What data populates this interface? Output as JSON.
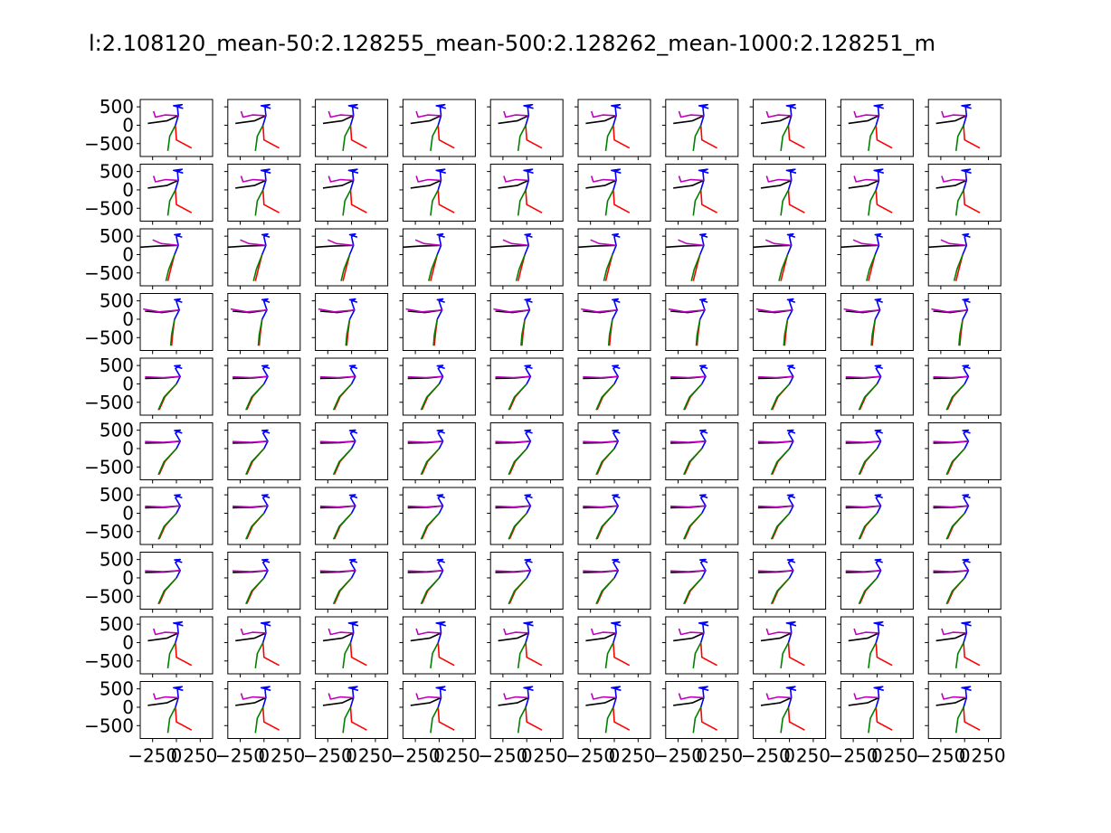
{
  "chart_data": {
    "type": "line",
    "layout": "grid-of-subplots",
    "title": "l:2.108120_mean-50:2.128255_mean-500:2.128262_mean-1000:2.128251_m",
    "grid": {
      "rows": 10,
      "cols": 10
    },
    "xlim": [
      -380,
      380
    ],
    "ylim": [
      -850,
      700
    ],
    "xticks": [
      -250,
      0,
      250
    ],
    "xtick_labels": [
      "−250",
      "0",
      "250"
    ],
    "yticks": [
      500,
      0,
      -500
    ],
    "ytick_labels": [
      "500",
      "0",
      "−500"
    ],
    "axis_grid": false,
    "legend": "none",
    "limb_colors": {
      "left_leg": "#ff0000",
      "right_leg": "#008000",
      "spine": "#0000ff",
      "arm_left": "#000000",
      "arm_right": "#bf00bf"
    },
    "poses": [
      {
        "name": "pose-a",
        "left_leg": [
          [
            -10,
            0
          ],
          [
            0,
            -400
          ],
          [
            160,
            -620
          ]
        ],
        "right_leg": [
          [
            -10,
            0
          ],
          [
            -70,
            -300
          ],
          [
            -90,
            -700
          ]
        ],
        "spine": [
          [
            -10,
            0
          ],
          [
            20,
            260
          ],
          [
            10,
            500
          ],
          [
            60,
            560
          ],
          [
            -30,
            530
          ],
          [
            70,
            460
          ]
        ],
        "arm_left": [
          [
            20,
            260
          ],
          [
            -100,
            120
          ],
          [
            -300,
            50
          ]
        ],
        "arm_right": [
          [
            20,
            260
          ],
          [
            -120,
            280
          ],
          [
            -220,
            220
          ],
          [
            -240,
            380
          ]
        ]
      },
      {
        "name": "pose-b",
        "left_leg": [
          [
            -20,
            0
          ],
          [
            -60,
            -400
          ],
          [
            -90,
            -720
          ]
        ],
        "right_leg": [
          [
            -20,
            0
          ],
          [
            -80,
            -400
          ],
          [
            -110,
            -720
          ]
        ],
        "spine": [
          [
            -20,
            0
          ],
          [
            20,
            250
          ],
          [
            0,
            480
          ],
          [
            40,
            560
          ],
          [
            -20,
            540
          ],
          [
            60,
            470
          ]
        ],
        "arm_left": [
          [
            20,
            250
          ],
          [
            -200,
            230
          ],
          [
            -380,
            200
          ]
        ],
        "arm_right": [
          [
            20,
            250
          ],
          [
            -160,
            300
          ],
          [
            -250,
            400
          ]
        ]
      },
      {
        "name": "pose-c",
        "left_leg": [
          [
            -20,
            0
          ],
          [
            -40,
            -420
          ],
          [
            -50,
            -720
          ]
        ],
        "right_leg": [
          [
            -20,
            0
          ],
          [
            -50,
            -420
          ],
          [
            -60,
            -720
          ]
        ],
        "spine": [
          [
            -20,
            0
          ],
          [
            30,
            250
          ],
          [
            0,
            480
          ],
          [
            40,
            550
          ],
          [
            -20,
            530
          ],
          [
            60,
            460
          ]
        ],
        "arm_left": [
          [
            30,
            250
          ],
          [
            -150,
            180
          ],
          [
            -330,
            220
          ]
        ],
        "arm_right": [
          [
            30,
            250
          ],
          [
            -180,
            200
          ],
          [
            -350,
            280
          ]
        ]
      },
      {
        "name": "pose-d",
        "left_leg": [
          [
            0,
            0
          ],
          [
            -120,
            -350
          ],
          [
            -180,
            -700
          ]
        ],
        "right_leg": [
          [
            0,
            0
          ],
          [
            -130,
            -360
          ],
          [
            -190,
            -710
          ]
        ],
        "spine": [
          [
            0,
            0
          ],
          [
            40,
            200
          ],
          [
            -10,
            420
          ],
          [
            40,
            500
          ],
          [
            -20,
            490
          ],
          [
            60,
            420
          ]
        ],
        "arm_left": [
          [
            40,
            200
          ],
          [
            -120,
            160
          ],
          [
            -330,
            150
          ]
        ],
        "arm_right": [
          [
            40,
            200
          ],
          [
            -140,
            170
          ],
          [
            -330,
            190
          ]
        ]
      }
    ],
    "row_pose": [
      "pose-a",
      "pose-a",
      "pose-b",
      "pose-c",
      "pose-d",
      "pose-d",
      "pose-d",
      "pose-d",
      "pose-a",
      "pose-a"
    ]
  }
}
